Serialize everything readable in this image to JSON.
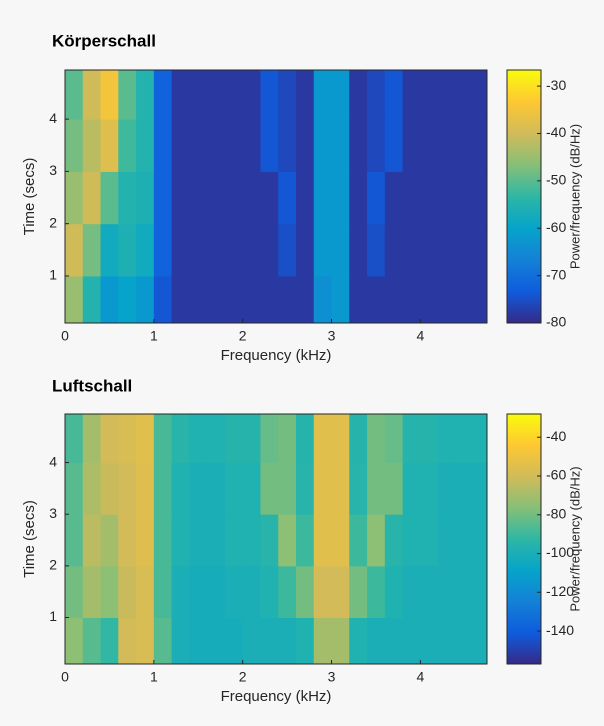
{
  "chart_data": [
    {
      "type": "heatmap",
      "title": "Körperschall",
      "xlabel": "Frequency (kHz)",
      "ylabel": "Time (secs)",
      "colorbar_label": "Power/frequency (dB/Hz)",
      "x": [
        0,
        0.2,
        0.4,
        0.6,
        0.8,
        1,
        1.2,
        1.4,
        1.6,
        1.8,
        2,
        2.2,
        2.4,
        2.6,
        2.8,
        3,
        3.2,
        3.4,
        3.6,
        3.8,
        4,
        4.2,
        4.4,
        4.6,
        4.75
      ],
      "y": [
        0.1,
        1,
        2,
        3,
        4,
        4.94
      ],
      "z": [
        [
          -45,
          -55,
          -62,
          -60,
          -62,
          -74,
          -78,
          -78,
          -78,
          -78,
          -78,
          -78,
          -78,
          -78,
          -64,
          -62,
          -78,
          -78,
          -78,
          -78,
          -78,
          -78,
          -78,
          -78
        ],
        [
          -40,
          -48,
          -58,
          -56,
          -58,
          -72,
          -78,
          -78,
          -78,
          -78,
          -78,
          -78,
          -75,
          -78,
          -62,
          -62,
          -78,
          -75,
          -78,
          -78,
          -78,
          -78,
          -78,
          -78
        ],
        [
          -45,
          -40,
          -50,
          -55,
          -56,
          -72,
          -78,
          -78,
          -78,
          -78,
          -78,
          -78,
          -74,
          -78,
          -62,
          -62,
          -78,
          -74,
          -78,
          -78,
          -78,
          -78,
          -78,
          -78
        ],
        [
          -48,
          -42,
          -38,
          -52,
          -55,
          -72,
          -78,
          -78,
          -78,
          -78,
          -78,
          -74,
          -76,
          -78,
          -62,
          -62,
          -78,
          -76,
          -74,
          -78,
          -78,
          -78,
          -78,
          -78
        ],
        [
          -50,
          -40,
          -35,
          -50,
          -55,
          -72,
          -78,
          -78,
          -78,
          -78,
          -78,
          -74,
          -76,
          -78,
          -62,
          -62,
          -78,
          -76,
          -74,
          -78,
          -78,
          -78,
          -78,
          -78
        ]
      ],
      "xlim": [
        0,
        4.75
      ],
      "ylim": [
        0.1,
        4.94
      ],
      "xticks": [
        0,
        1,
        2,
        3,
        4
      ],
      "yticks": [
        1,
        2,
        3,
        4
      ],
      "clim": [
        -80,
        -26.6
      ],
      "cticks": [
        -30,
        -40,
        -50,
        -60,
        -70,
        -80
      ],
      "colormap": [
        "#352a87",
        "#0f5cdd",
        "#1481d6",
        "#06a4ca",
        "#2eb7a4",
        "#87bf77",
        "#d1bb59",
        "#fec832",
        "#f9fb0e"
      ]
    },
    {
      "type": "heatmap",
      "title": "Luftschall",
      "xlabel": "Frequency (kHz)",
      "ylabel": "Time (secs)",
      "colorbar_label": "Power/frequency (dB/Hz)",
      "x": [
        0,
        0.2,
        0.4,
        0.6,
        0.8,
        1,
        1.2,
        1.4,
        1.6,
        1.8,
        2,
        2.2,
        2.4,
        2.6,
        2.8,
        3,
        3.2,
        3.4,
        3.6,
        3.8,
        4,
        4.2,
        4.4,
        4.6,
        4.75
      ],
      "y": [
        0.1,
        1,
        2,
        3,
        4,
        4.94
      ],
      "z": [
        [
          -75,
          -85,
          -92,
          -60,
          -58,
          -85,
          -100,
          -102,
          -102,
          -102,
          -100,
          -100,
          -100,
          -98,
          -70,
          -70,
          -98,
          -100,
          -100,
          -100,
          -100,
          -100,
          -100,
          -100
        ],
        [
          -80,
          -70,
          -75,
          -62,
          -58,
          -88,
          -100,
          -102,
          -102,
          -100,
          -100,
          -98,
          -90,
          -80,
          -60,
          -60,
          -80,
          -90,
          -98,
          -100,
          -100,
          -100,
          -100,
          -100
        ],
        [
          -85,
          -65,
          -70,
          -60,
          -56,
          -88,
          -98,
          -100,
          -100,
          -98,
          -98,
          -95,
          -75,
          -90,
          -55,
          -55,
          -90,
          -75,
          -95,
          -98,
          -98,
          -100,
          -100,
          -100
        ],
        [
          -85,
          -68,
          -62,
          -60,
          -56,
          -88,
          -98,
          -100,
          -100,
          -98,
          -98,
          -80,
          -80,
          -95,
          -55,
          -55,
          -95,
          -80,
          -80,
          -98,
          -98,
          -100,
          -100,
          -100
        ],
        [
          -88,
          -70,
          -60,
          -58,
          -55,
          -88,
          -95,
          -98,
          -98,
          -96,
          -96,
          -82,
          -80,
          -96,
          -55,
          -55,
          -96,
          -80,
          -82,
          -96,
          -96,
          -98,
          -98,
          -98
        ]
      ],
      "xlim": [
        0,
        4.75
      ],
      "ylim": [
        0.1,
        4.94
      ],
      "xticks": [
        0,
        1,
        2,
        3,
        4
      ],
      "yticks": [
        1,
        2,
        3,
        4
      ],
      "clim": [
        -157,
        -28
      ],
      "cticks": [
        -40,
        -60,
        -80,
        -100,
        -120,
        -140
      ],
      "colormap": [
        "#352a87",
        "#0f5cdd",
        "#1481d6",
        "#06a4ca",
        "#2eb7a4",
        "#87bf77",
        "#d1bb59",
        "#fec832",
        "#f9fb0e"
      ]
    }
  ]
}
